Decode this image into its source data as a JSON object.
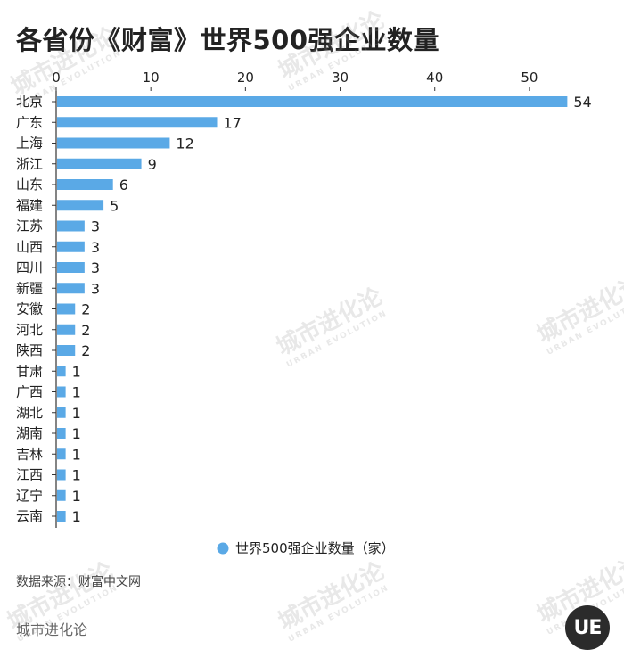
{
  "title": "各省份《财富》世界500强企业数量",
  "source": "数据来源：财富中文网",
  "brand": "城市进化论",
  "logo_text": "UE",
  "watermark": {
    "cn": "城市进化论",
    "en": "URBAN EVOLUTION"
  },
  "colors": {
    "bar": "#5aa9e6",
    "axis": "#333333",
    "text": "#222222"
  },
  "chart_data": {
    "type": "bar",
    "orientation": "horizontal",
    "categories": [
      "北京",
      "广东",
      "上海",
      "浙江",
      "山东",
      "福建",
      "江苏",
      "山西",
      "四川",
      "新疆",
      "安徽",
      "河北",
      "陕西",
      "甘肃",
      "广西",
      "湖北",
      "湖南",
      "吉林",
      "江西",
      "辽宁",
      "云南"
    ],
    "series": [
      {
        "name": "世界500强企业数量（家）",
        "values": [
          54,
          17,
          12,
          9,
          6,
          5,
          3,
          3,
          3,
          3,
          2,
          2,
          2,
          1,
          1,
          1,
          1,
          1,
          1,
          1,
          1
        ]
      }
    ],
    "xlim": [
      0,
      55
    ],
    "xticks": [
      0,
      10,
      20,
      30,
      40,
      50
    ],
    "grid": false,
    "legend_position": "bottom-center"
  }
}
